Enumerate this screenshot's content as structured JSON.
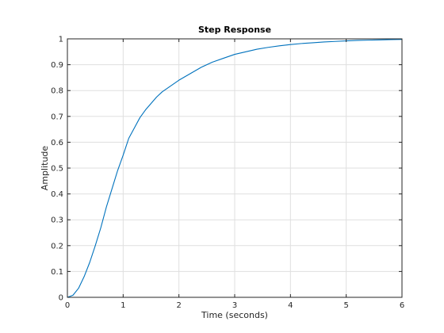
{
  "chart_data": {
    "type": "line",
    "title": "Step Response",
    "xlabel": "Time (seconds)",
    "ylabel": "Amplitude",
    "xlim": [
      0,
      6
    ],
    "ylim": [
      0,
      1
    ],
    "xticks": [
      0,
      1,
      2,
      3,
      4,
      5,
      6
    ],
    "xtick_labels": [
      "0",
      "1",
      "2",
      "3",
      "4",
      "5",
      "6"
    ],
    "yticks": [
      0,
      0.1,
      0.2,
      0.3,
      0.4,
      0.5,
      0.6,
      0.7,
      0.8,
      0.9,
      1
    ],
    "ytick_labels": [
      "0",
      "0.1",
      "0.2",
      "0.3",
      "0.4",
      "0.5",
      "0.6",
      "0.7",
      "0.8",
      "0.9",
      "1"
    ],
    "grid": true,
    "line_color": "#0072bd",
    "reference_line": {
      "y": 1,
      "style": "dotted",
      "color": "#000000"
    },
    "series": [
      {
        "x": [
          0,
          0.1,
          0.2,
          0.3,
          0.4,
          0.5,
          0.6,
          0.7,
          0.8,
          0.9,
          1.0,
          1.1,
          1.2,
          1.3,
          1.4,
          1.5,
          1.6,
          1.7,
          1.8,
          1.9,
          2.0,
          2.2,
          2.4,
          2.6,
          2.8,
          3.0,
          3.2,
          3.4,
          3.6,
          3.8,
          4.0,
          4.2,
          4.4,
          4.6,
          4.8,
          5.0,
          5.2,
          5.4,
          5.6,
          5.8,
          6.0
        ],
        "values": [
          0,
          0.008,
          0.035,
          0.08,
          0.135,
          0.2,
          0.27,
          0.35,
          0.42,
          0.49,
          0.55,
          0.615,
          0.655,
          0.695,
          0.725,
          0.75,
          0.775,
          0.795,
          0.81,
          0.825,
          0.84,
          0.865,
          0.89,
          0.91,
          0.925,
          0.94,
          0.95,
          0.96,
          0.967,
          0.973,
          0.978,
          0.982,
          0.985,
          0.988,
          0.99,
          0.992,
          0.994,
          0.995,
          0.996,
          0.997,
          0.998
        ]
      }
    ]
  }
}
